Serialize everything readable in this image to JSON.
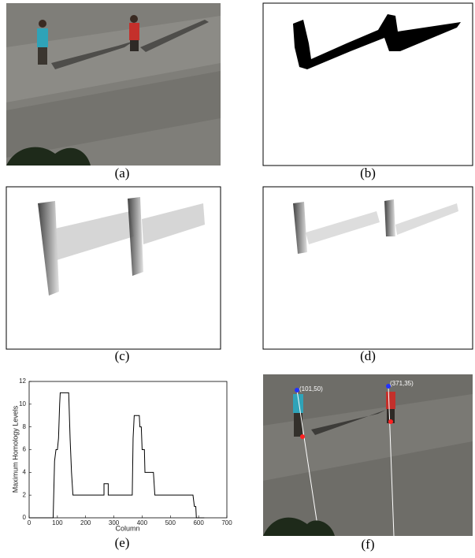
{
  "panels": [
    {
      "caption": "(a)"
    },
    {
      "caption": "(b)"
    },
    {
      "caption": "(c)"
    },
    {
      "caption": "(d)"
    },
    {
      "caption": "(e)"
    },
    {
      "caption": "(f)",
      "labels": [
        "(101,50)",
        "(371,35)"
      ]
    }
  ],
  "chart_data": {
    "type": "line",
    "x_label": "Column",
    "y_label": "Maximum Homology Levels",
    "color": "#000000",
    "x": [
      0,
      85,
      87,
      90,
      95,
      100,
      104,
      108,
      110,
      140,
      145,
      150,
      155,
      265,
      265,
      280,
      280,
      365,
      368,
      372,
      390,
      392,
      397,
      400,
      408,
      410,
      440,
      445,
      580,
      585,
      590,
      592,
      620
    ],
    "values": [
      0,
      0,
      2,
      5,
      6,
      6,
      7,
      10,
      11,
      11,
      7,
      4,
      2,
      2,
      3,
      3,
      2,
      2,
      7,
      9,
      9,
      8,
      8,
      6,
      6,
      4,
      4,
      2,
      2,
      1,
      1,
      0,
      0
    ],
    "xlim": [
      0,
      700
    ],
    "ylim": [
      0,
      12
    ],
    "xticks": [
      0,
      100,
      200,
      300,
      400,
      500,
      600,
      700
    ],
    "yticks": [
      0,
      2,
      4,
      6,
      8,
      10,
      12
    ]
  }
}
